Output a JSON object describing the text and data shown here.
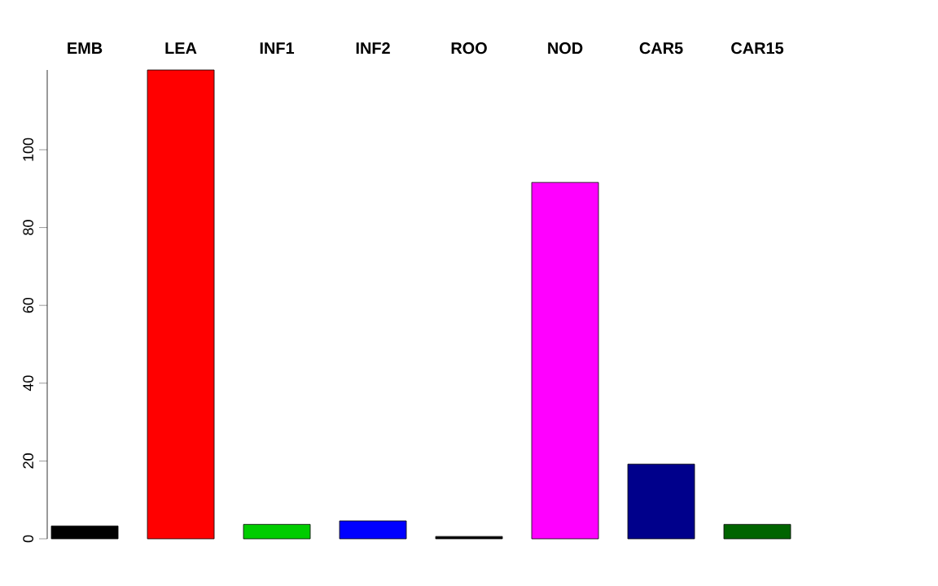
{
  "chart_data": {
    "type": "bar",
    "categories": [
      "EMB",
      "LEA",
      "INF1",
      "INF2",
      "ROO",
      "NOD",
      "CAR5",
      "CAR15"
    ],
    "values": [
      3.3,
      120.5,
      3.7,
      4.6,
      0.6,
      91.6,
      19.2,
      3.7
    ],
    "colors": [
      "#000000",
      "#ff0000",
      "#00cd00",
      "#0000ff",
      "#000000",
      "#ff00ff",
      "#00008b",
      "#006400"
    ],
    "ylim": [
      0,
      120.5
    ],
    "yticks": [
      0,
      20,
      40,
      60,
      80,
      100
    ]
  }
}
